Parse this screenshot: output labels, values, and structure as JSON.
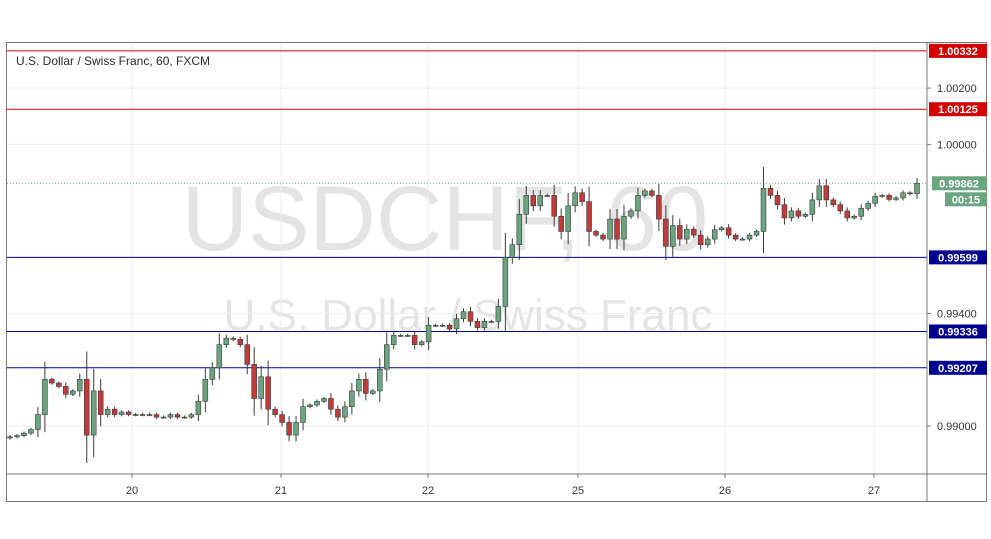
{
  "chart_data": {
    "type": "candlestick",
    "title": "U.S. Dollar / Swiss Franc, 60, FXCM",
    "watermark": {
      "symbol": "USDCHF, 60",
      "name": "U.S. Dollar / Swiss Franc"
    },
    "x_tick_labels": [
      "20",
      "21",
      "22",
      "25",
      "26",
      "27"
    ],
    "y_tick_labels": [
      "1.00200",
      "1.00000",
      "0.99400",
      "0.99000"
    ],
    "y_ticks": [
      1.002,
      1.0,
      0.994,
      0.99
    ],
    "ylim": [
      0.9883,
      1.0036
    ],
    "grid": true,
    "colors": {
      "up": "#6aa57f",
      "down": "#c23b3b",
      "resistance": "#d40000",
      "support": "#000090",
      "background": "#ffffff",
      "grid": "#eeeeee"
    },
    "horizontal_lines": [
      {
        "label": "1.00332",
        "value": 1.00332,
        "color": "#d40000"
      },
      {
        "label": "1.00125",
        "value": 1.00125,
        "color": "#d40000"
      },
      {
        "label": "0.99599",
        "value": 0.99599,
        "color": "#000090"
      },
      {
        "label": "0.99336",
        "value": 0.99336,
        "color": "#000090"
      },
      {
        "label": "0.99207",
        "value": 0.99207,
        "color": "#000090"
      }
    ],
    "current_price": {
      "label": "0.99862",
      "value": 0.99862,
      "countdown": "00:15",
      "color": "#6aa57f"
    },
    "candles_close": [
      0.98962,
      0.98966,
      0.98975,
      0.98988,
      0.99041,
      0.99166,
      0.99153,
      0.99141,
      0.99113,
      0.99125,
      0.99166,
      0.98968,
      0.99125,
      0.99041,
      0.9906,
      0.99041,
      0.9905,
      0.99041,
      0.99041,
      0.99041,
      0.99041,
      0.99032,
      0.99032,
      0.99041,
      0.99032,
      0.99032,
      0.99041,
      0.99088,
      0.99166,
      0.99207,
      0.99289,
      0.99312,
      0.99308,
      0.99289,
      0.99219,
      0.99098,
      0.99175,
      0.9906,
      0.99041,
      0.99013,
      0.98968,
      0.99013,
      0.99069,
      0.99075,
      0.99088,
      0.99098,
      0.9906,
      0.99032,
      0.99069,
      0.99125,
      0.99166,
      0.99116,
      0.99125,
      0.99202,
      0.99289,
      0.99322,
      0.99322,
      0.99322,
      0.99289,
      0.99299,
      0.99358,
      0.99358,
      0.99358,
      0.99345,
      0.99381,
      0.99406,
      0.99372,
      0.9935,
      0.99372,
      0.99372,
      0.99425,
      0.99599,
      0.99644,
      0.99752,
      0.99819,
      0.99782,
      0.99819,
      0.99819,
      0.99745,
      0.99691,
      0.99782,
      0.99828,
      0.99797,
      0.99691,
      0.99678,
      0.99664,
      0.99735,
      0.99664,
      0.99745,
      0.99764,
      0.99819,
      0.99835,
      0.99819,
      0.99735,
      0.99638,
      0.99712,
      0.99664,
      0.99699,
      0.99678,
      0.99644,
      0.99664,
      0.99697,
      0.99704,
      0.99678,
      0.99664,
      0.99664,
      0.99678,
      0.99691,
      0.99844,
      0.99819,
      0.99786,
      0.99739,
      0.99764,
      0.99745,
      0.99752,
      0.99803,
      0.99853,
      0.99803,
      0.99786,
      0.99764,
      0.99739,
      0.99745,
      0.99773,
      0.99791,
      0.99816,
      0.99819,
      0.99805,
      0.9981,
      0.99828,
      0.99825,
      0.99862
    ]
  }
}
